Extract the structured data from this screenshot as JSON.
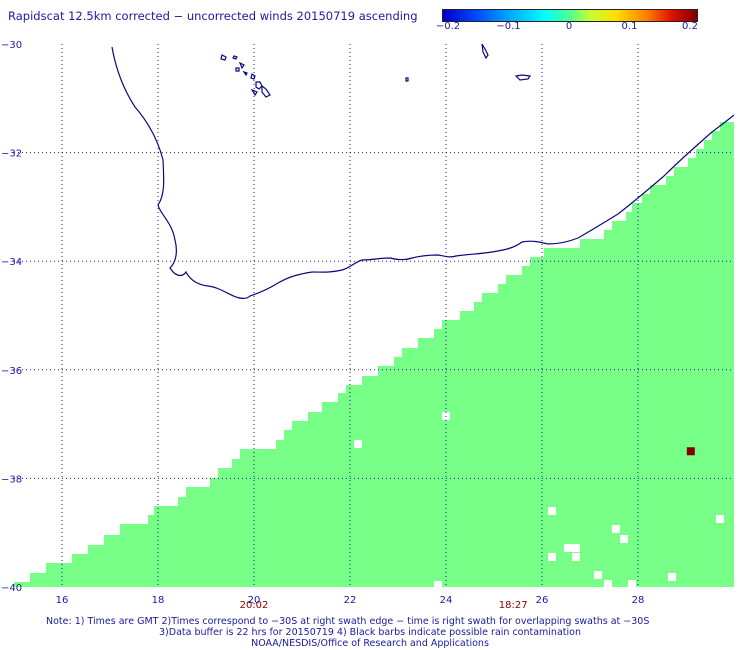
{
  "title": "Rapidscat 12.5km corrected − uncorrected winds 20150719 ascending",
  "colorbar": {
    "ticks": [
      "−0.2",
      "−0.1",
      "0",
      "0.1",
      "0.2"
    ],
    "tick_values": [
      -0.2,
      -0.1,
      0,
      0.1,
      0.2
    ]
  },
  "map": {
    "lon_range": [
      15,
      30
    ],
    "lat_range": [
      -40,
      -30
    ],
    "lat_ticks": [
      {
        "value": -30,
        "label": "−30"
      },
      {
        "value": -32,
        "label": "−32"
      },
      {
        "value": -34,
        "label": "−34"
      },
      {
        "value": -36,
        "label": "−36"
      },
      {
        "value": -38,
        "label": "−38"
      },
      {
        "value": -40,
        "label": "−40"
      }
    ],
    "lon_ticks": [
      {
        "value": 16,
        "label": "16"
      },
      {
        "value": 18,
        "label": "18"
      },
      {
        "value": 20,
        "label": "20"
      },
      {
        "value": 22,
        "label": "22"
      },
      {
        "value": 24,
        "label": "24"
      },
      {
        "value": 26,
        "label": "26"
      },
      {
        "value": 28,
        "label": "28"
      }
    ],
    "times": [
      {
        "lon": 20,
        "label": "20:02"
      },
      {
        "lon": 25.4,
        "label": "18:27"
      }
    ],
    "colors": {
      "swath": "#77ff88",
      "grid": "#1a1aa0",
      "coast": "#0a0a7a",
      "text": "#1a1aa0",
      "anomaly": "#800000",
      "time": "#8b0000"
    },
    "anomaly": {
      "lon": 29.1,
      "lat": -37.5,
      "value": 0.2
    }
  },
  "notes": {
    "line1": "Note: 1) Times are GMT 2)Times correspond to −30S at right swath edge − time is right swath for overlapping swaths at −30S",
    "line2": "3)Data buffer is 22 hrs for 20150719 4) Black barbs indicate possible rain contamination",
    "line3": "NOAA/NESDIS/Office of Research and Applications"
  }
}
